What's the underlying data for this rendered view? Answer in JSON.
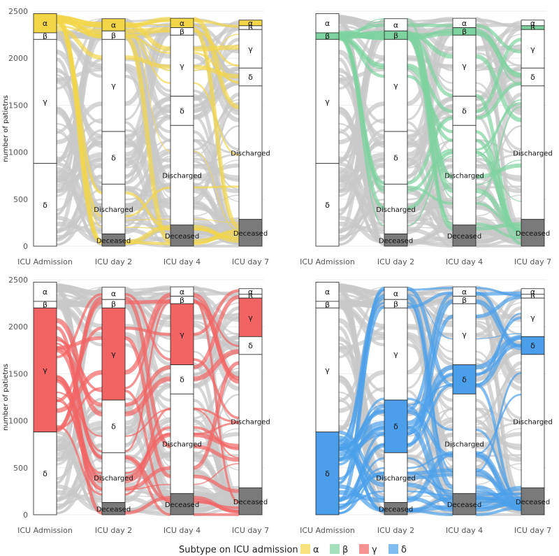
{
  "chart_data": {
    "type": "alluvial",
    "ylabel": "number of patietns",
    "ylim": [
      0,
      2500
    ],
    "yticks": [
      0,
      500,
      1000,
      1500,
      2000,
      2500
    ],
    "timepoints": [
      "ICU Admission",
      "ICU day 2",
      "ICU day 4",
      "ICU day 7"
    ],
    "stack_order_top_to_bottom": [
      "α",
      "β",
      "γ",
      "δ",
      "Discharged",
      "Deceased"
    ],
    "strata": [
      {
        "time": "ICU Admission",
        "counts": {
          "α": 205,
          "β": 70,
          "γ": 1320,
          "δ": 880,
          "Discharged": 0,
          "Deceased": 0
        }
      },
      {
        "time": "ICU day 2",
        "counts": {
          "α": 130,
          "β": 90,
          "γ": 980,
          "δ": 560,
          "Discharged": 530,
          "Deceased": 130
        }
      },
      {
        "time": "ICU day 4",
        "counts": {
          "α": 100,
          "β": 80,
          "γ": 650,
          "δ": 310,
          "Discharged": 1060,
          "Deceased": 225
        }
      },
      {
        "time": "ICU day 7",
        "counts": {
          "α": 60,
          "β": 40,
          "γ": 410,
          "δ": 190,
          "Discharged": 1420,
          "Deceased": 285
        }
      }
    ],
    "legend": {
      "title": "Subtype on ICU admission",
      "entries": [
        {
          "label": "α",
          "color": "#F2D648"
        },
        {
          "label": "β",
          "color": "#7DD3A0"
        },
        {
          "label": "γ",
          "color": "#F26464"
        },
        {
          "label": "δ",
          "color": "#4B9FEA"
        }
      ],
      "position": "bottom"
    },
    "panels": [
      {
        "highlight": "α"
      },
      {
        "highlight": "β"
      },
      {
        "highlight": "γ"
      },
      {
        "highlight": "δ"
      }
    ]
  },
  "colors": {
    "flow_grey": "#c8c8c8",
    "deceased_fill": "#7a7a7a",
    "grid": "#e6e6e6"
  }
}
